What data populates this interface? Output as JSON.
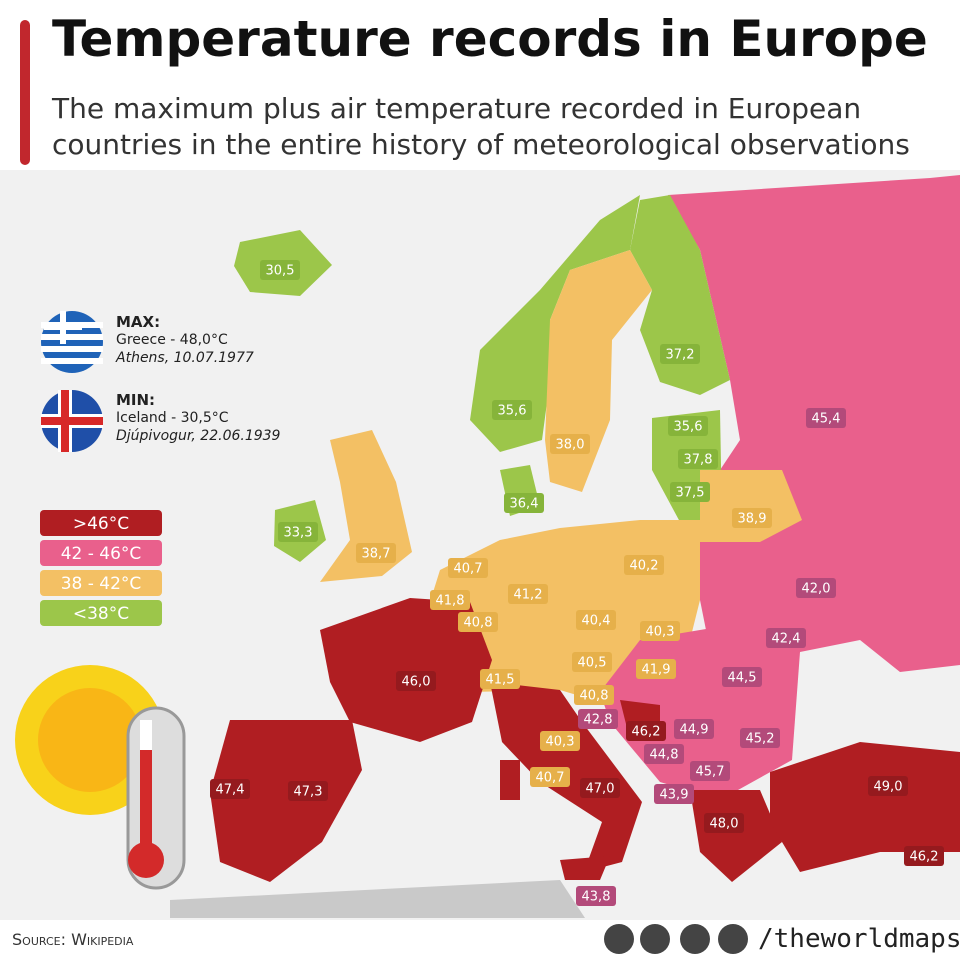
{
  "header": {
    "title": "Temperature records in Europe",
    "subtitle_lines": [
      "The maximum plus air temperature recorded in European",
      "countries in the entire history of meteorological observations"
    ]
  },
  "records": {
    "max": {
      "label": "MAX:",
      "text": "Greece - 48,0°C",
      "detail": "Athens, 10.07.1977"
    },
    "min": {
      "label": "MIN:",
      "text": "Iceland - 30,5°C",
      "detail": "Djúpivogur, 22.06.1939"
    }
  },
  "legend": [
    {
      "label": ">46°C",
      "color": "#b01e22"
    },
    {
      "label": "42 - 46°C",
      "color": "#e9608c"
    },
    {
      "label": "38 - 42°C",
      "color": "#f3c064"
    },
    {
      "label": "<38°C",
      "color": "#9cc64a"
    }
  ],
  "map": {
    "labels": [
      {
        "text": "30,5",
        "color": "#86b43a"
      },
      {
        "text": "37,2",
        "color": "#86b43a"
      },
      {
        "text": "35,6",
        "color": "#86b43a"
      },
      {
        "text": "35,6",
        "color": "#86b43a"
      },
      {
        "text": "38,0",
        "color": "#e6b04a"
      },
      {
        "text": "37,8",
        "color": "#86b43a"
      },
      {
        "text": "36,4",
        "color": "#86b43a"
      },
      {
        "text": "37,5",
        "color": "#86b43a"
      },
      {
        "text": "38,9",
        "color": "#e6b04a"
      },
      {
        "text": "33,3",
        "color": "#86b43a"
      },
      {
        "text": "38,7",
        "color": "#e6b04a"
      },
      {
        "text": "40,7",
        "color": "#e6b04a"
      },
      {
        "text": "40,2",
        "color": "#e6b04a"
      },
      {
        "text": "41,2",
        "color": "#e6b04a"
      },
      {
        "text": "41,8",
        "color": "#e6b04a"
      },
      {
        "text": "40,8",
        "color": "#e6b04a"
      },
      {
        "text": "40,4",
        "color": "#e6b04a"
      },
      {
        "text": "40,3",
        "color": "#e6b04a"
      },
      {
        "text": "42,0",
        "color": "#b34a7a"
      },
      {
        "text": "42,4",
        "color": "#b34a7a"
      },
      {
        "text": "46,0",
        "color": "#951a1e"
      },
      {
        "text": "40,5",
        "color": "#e6b04a"
      },
      {
        "text": "41,9",
        "color": "#e6b04a"
      },
      {
        "text": "41,5",
        "color": "#e6b04a"
      },
      {
        "text": "44,5",
        "color": "#b34a7a"
      },
      {
        "text": "40,8",
        "color": "#e6b04a"
      },
      {
        "text": "42,8",
        "color": "#b34a7a"
      },
      {
        "text": "46,2",
        "color": "#951a1e"
      },
      {
        "text": "44,9",
        "color": "#b34a7a"
      },
      {
        "text": "44,8",
        "color": "#b34a7a"
      },
      {
        "text": "45,2",
        "color": "#b34a7a"
      },
      {
        "text": "40,3",
        "color": "#e6b04a"
      },
      {
        "text": "45,7",
        "color": "#b34a7a"
      },
      {
        "text": "40,7",
        "color": "#e6b04a"
      },
      {
        "text": "47,0",
        "color": "#951a1e"
      },
      {
        "text": "43,9",
        "color": "#b34a7a"
      },
      {
        "text": "47,4",
        "color": "#951a1e"
      },
      {
        "text": "47,3",
        "color": "#951a1e"
      },
      {
        "text": "49,0",
        "color": "#951a1e"
      },
      {
        "text": "48,0",
        "color": "#951a1e"
      },
      {
        "text": "46,2",
        "color": "#951a1e"
      },
      {
        "text": "43,8",
        "color": "#b34a7a"
      },
      {
        "text": "45,4",
        "color": "#b34a7a"
      }
    ]
  },
  "footer": {
    "source": "Source: Wikipedia",
    "handle": "/theworldmaps"
  }
}
